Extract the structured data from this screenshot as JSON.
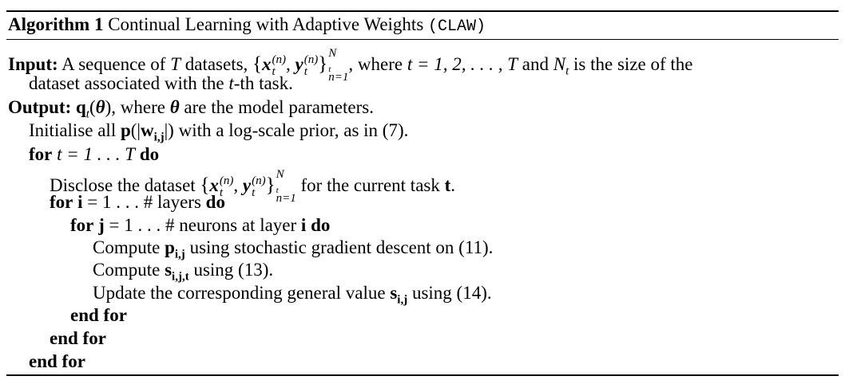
{
  "algorithm": {
    "label": "Algorithm 1",
    "title": "Continual Learning with Adaptive Weights",
    "acronym": "(CLAW)"
  },
  "input": {
    "keyword": "Input:",
    "t1": "A sequence of",
    "T": "T",
    "t2": "datasets,",
    "x": "x",
    "y": "y",
    "sub_t": "t",
    "sup_n": "(n)",
    "Nt": "N",
    "Nt_sub": "t",
    "n_eq1": "n=1",
    "t3": ", where",
    "t_eq": "t = 1, 2, . . . , T",
    "t4": "and",
    "t5": "is the size of the",
    "line2_a": "dataset associated with the",
    "t_var": "t",
    "line2_b": "-th task."
  },
  "output": {
    "keyword": "Output:",
    "q": "q",
    "theta": "θ",
    "t1": ", where",
    "t2": "are the model parameters."
  },
  "steps": {
    "init_a": "Initialise all",
    "init_p": "p",
    "init_w": "w",
    "init_ij": "i,j",
    "init_b": "with a log-scale prior, as in (7).",
    "for1_kw": "for",
    "for1_expr": "t = 1 . . . T",
    "do_kw": "do",
    "disclose_a": "Disclose the dataset",
    "disclose_b": "for the current task",
    "task_t": "t",
    "for2_var": "i",
    "for2_expr": "= 1 . . . #",
    "for2_b": "layers",
    "for3_var": "j",
    "for3_expr": "= 1 . . . #",
    "for3_b": "neurons at layer",
    "for3_i": "i",
    "compute": "Compute",
    "p_ij": "p",
    "ij": "i,j",
    "c1_b": "using stochastic gradient descent on (11).",
    "s": "s",
    "ijt": "i,j,t",
    "c2_b": "using (13).",
    "update_a": "Update the corresponding general value",
    "update_b": "using (14).",
    "end_for": "end for"
  }
}
